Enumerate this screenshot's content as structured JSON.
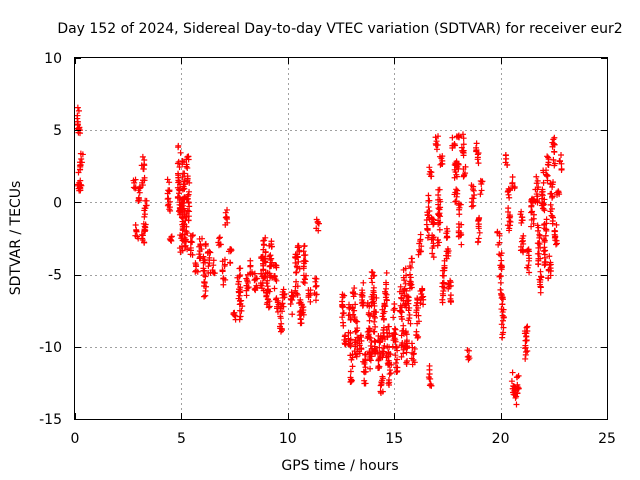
{
  "chart_data": {
    "type": "scatter",
    "title": "Day 152 of 2024, Sidereal Day-to-day VTEC variation (SDTVAR) for receiver eur2",
    "xlabel": "GPS time / hours",
    "ylabel": "SDTVAR / TECUs",
    "xlim": [
      0,
      25
    ],
    "ylim": [
      -15,
      10
    ],
    "x_ticks": [
      0,
      5,
      10,
      15,
      20,
      25
    ],
    "y_ticks": [
      -15,
      -10,
      -5,
      0,
      5,
      10
    ],
    "x_tick_labels": [
      "0",
      "5",
      "10",
      "15",
      "20",
      "25"
    ],
    "y_tick_labels": [
      "-15",
      "-10",
      "-5",
      "0",
      "5",
      "10"
    ],
    "grid": true,
    "marker": "+",
    "color": "#ff0000",
    "series": [
      {
        "name": "SDTVAR",
        "clusters": [
          [
            0.15,
            5.8,
            0.8
          ],
          [
            0.2,
            5.0,
            0.3
          ],
          [
            0.2,
            1.8,
            1.0
          ],
          [
            0.3,
            2.8,
            0.6
          ],
          [
            0.25,
            1.2,
            0.4
          ],
          [
            2.8,
            1.2,
            0.4
          ],
          [
            2.9,
            -2.0,
            0.6
          ],
          [
            3.0,
            0.8,
            0.8
          ],
          [
            3.2,
            2.2,
            1.0
          ],
          [
            3.3,
            -1.0,
            1.5
          ],
          [
            3.2,
            -2.5,
            0.4
          ],
          [
            4.4,
            0.5,
            1.2
          ],
          [
            4.5,
            -2.5,
            0.3
          ],
          [
            4.9,
            1.5,
            2.5
          ],
          [
            5.0,
            -1.5,
            2.0
          ],
          [
            5.1,
            0.0,
            3.0
          ],
          [
            5.3,
            1.0,
            2.5
          ],
          [
            5.2,
            -2.0,
            1.5
          ],
          [
            5.5,
            -3.0,
            0.8
          ],
          [
            5.7,
            -4.5,
            0.5
          ],
          [
            5.9,
            -3.5,
            1.0
          ],
          [
            6.1,
            -4.0,
            1.2
          ],
          [
            6.3,
            -4.2,
            0.8
          ],
          [
            6.1,
            -6.2,
            0.7
          ],
          [
            6.5,
            -4.5,
            0.5
          ],
          [
            6.8,
            -2.5,
            0.5
          ],
          [
            7.0,
            -4.8,
            1.0
          ],
          [
            7.1,
            -1.0,
            0.7
          ],
          [
            7.3,
            -3.8,
            0.6
          ],
          [
            7.5,
            -7.8,
            0.4
          ],
          [
            7.7,
            -5.5,
            1.2
          ],
          [
            7.8,
            -7.0,
            1.2
          ],
          [
            8.1,
            -5.8,
            0.8
          ],
          [
            8.3,
            -4.5,
            0.6
          ],
          [
            8.5,
            -5.5,
            0.8
          ],
          [
            8.8,
            -5.0,
            1.5
          ],
          [
            8.9,
            -3.8,
            1.5
          ],
          [
            9.0,
            -6.0,
            1.2
          ],
          [
            9.2,
            -4.0,
            1.5
          ],
          [
            9.1,
            -6.5,
            0.8
          ],
          [
            9.4,
            -5.5,
            1.2
          ],
          [
            9.5,
            -7.0,
            0.6
          ],
          [
            9.7,
            -8.0,
            1.0
          ],
          [
            9.8,
            -6.5,
            0.8
          ],
          [
            10.2,
            -7.0,
            0.8
          ],
          [
            10.4,
            -5.0,
            1.5
          ],
          [
            10.5,
            -3.8,
            0.8
          ],
          [
            10.6,
            -7.5,
            1.0
          ],
          [
            10.8,
            -4.5,
            1.5
          ],
          [
            10.7,
            -7.8,
            0.6
          ],
          [
            11.0,
            -6.5,
            0.6
          ],
          [
            11.3,
            -6.0,
            0.8
          ],
          [
            11.4,
            -1.5,
            0.6
          ],
          [
            12.6,
            -7.5,
            1.2
          ],
          [
            12.7,
            -9.5,
            0.6
          ],
          [
            12.9,
            -8.5,
            1.5
          ],
          [
            13.0,
            -11.5,
            1.0
          ],
          [
            13.1,
            -7.0,
            1.2
          ],
          [
            13.2,
            -9.5,
            1.5
          ],
          [
            13.4,
            -10.0,
            1.0
          ],
          [
            13.5,
            -6.5,
            1.0
          ],
          [
            13.6,
            -11.5,
            1.2
          ],
          [
            13.8,
            -8.0,
            1.5
          ],
          [
            13.9,
            -10.5,
            1.2
          ],
          [
            14.0,
            -6.0,
            1.5
          ],
          [
            14.1,
            -8.5,
            2.0
          ],
          [
            14.3,
            -10.5,
            1.5
          ],
          [
            14.4,
            -12.5,
            0.8
          ],
          [
            14.5,
            -9.0,
            1.8
          ],
          [
            14.6,
            -6.0,
            1.2
          ],
          [
            14.7,
            -10.0,
            1.5
          ],
          [
            14.8,
            -11.5,
            1.2
          ],
          [
            15.0,
            -8.5,
            1.5
          ],
          [
            15.1,
            -11.0,
            1.0
          ],
          [
            15.3,
            -7.0,
            1.2
          ],
          [
            15.4,
            -9.5,
            1.2
          ],
          [
            15.5,
            -6.0,
            1.5
          ],
          [
            15.6,
            -10.0,
            1.2
          ],
          [
            15.7,
            -7.5,
            1.0
          ],
          [
            15.8,
            -5.0,
            1.2
          ],
          [
            15.9,
            -10.5,
            0.8
          ],
          [
            16.1,
            -8.0,
            1.5
          ],
          [
            16.2,
            -3.0,
            0.8
          ],
          [
            16.3,
            -6.5,
            1.0
          ],
          [
            16.6,
            -1.0,
            1.5
          ],
          [
            16.7,
            -12.0,
            0.8
          ],
          [
            16.7,
            2.0,
            0.5
          ],
          [
            16.8,
            -2.5,
            1.5
          ],
          [
            17.0,
            4.0,
            0.6
          ],
          [
            17.1,
            -1.0,
            2.0
          ],
          [
            17.2,
            3.0,
            0.6
          ],
          [
            17.3,
            -5.5,
            1.5
          ],
          [
            17.5,
            -3.0,
            1.2
          ],
          [
            17.6,
            -6.0,
            1.0
          ],
          [
            17.8,
            4.0,
            0.6
          ],
          [
            17.9,
            1.5,
            1.5
          ],
          [
            18.0,
            3.5,
            1.2
          ],
          [
            18.1,
            -1.5,
            1.5
          ],
          [
            18.2,
            4.0,
            0.8
          ],
          [
            18.3,
            2.0,
            0.5
          ],
          [
            18.5,
            -10.5,
            0.4
          ],
          [
            18.7,
            0.5,
            0.8
          ],
          [
            18.9,
            3.5,
            0.8
          ],
          [
            19.0,
            -2.0,
            1.0
          ],
          [
            19.1,
            1.0,
            0.5
          ],
          [
            19.9,
            -2.5,
            0.5
          ],
          [
            20.0,
            -5.0,
            1.5
          ],
          [
            20.1,
            -8.0,
            1.5
          ],
          [
            20.3,
            2.8,
            0.5
          ],
          [
            20.4,
            -0.5,
            1.5
          ],
          [
            20.6,
            1.5,
            0.6
          ],
          [
            20.6,
            -12.5,
            0.8
          ],
          [
            20.7,
            -13.5,
            0.6
          ],
          [
            20.8,
            -12.8,
            0.8
          ],
          [
            21.0,
            -2.0,
            1.5
          ],
          [
            21.2,
            -10.0,
            1.5
          ],
          [
            21.3,
            -4.0,
            1.0
          ],
          [
            21.5,
            -0.5,
            1.5
          ],
          [
            21.7,
            0.8,
            1.0
          ],
          [
            21.8,
            -3.0,
            1.5
          ],
          [
            21.9,
            -5.5,
            0.8
          ],
          [
            22.0,
            1.0,
            1.5
          ],
          [
            22.1,
            -2.5,
            2.0
          ],
          [
            22.2,
            2.5,
            1.0
          ],
          [
            22.3,
            -4.5,
            1.0
          ],
          [
            22.4,
            0.0,
            1.5
          ],
          [
            22.5,
            3.5,
            1.0
          ],
          [
            22.6,
            -2.0,
            1.0
          ],
          [
            22.8,
            2.8,
            0.6
          ],
          [
            22.7,
            0.8,
            0.4
          ]
        ]
      }
    ]
  }
}
